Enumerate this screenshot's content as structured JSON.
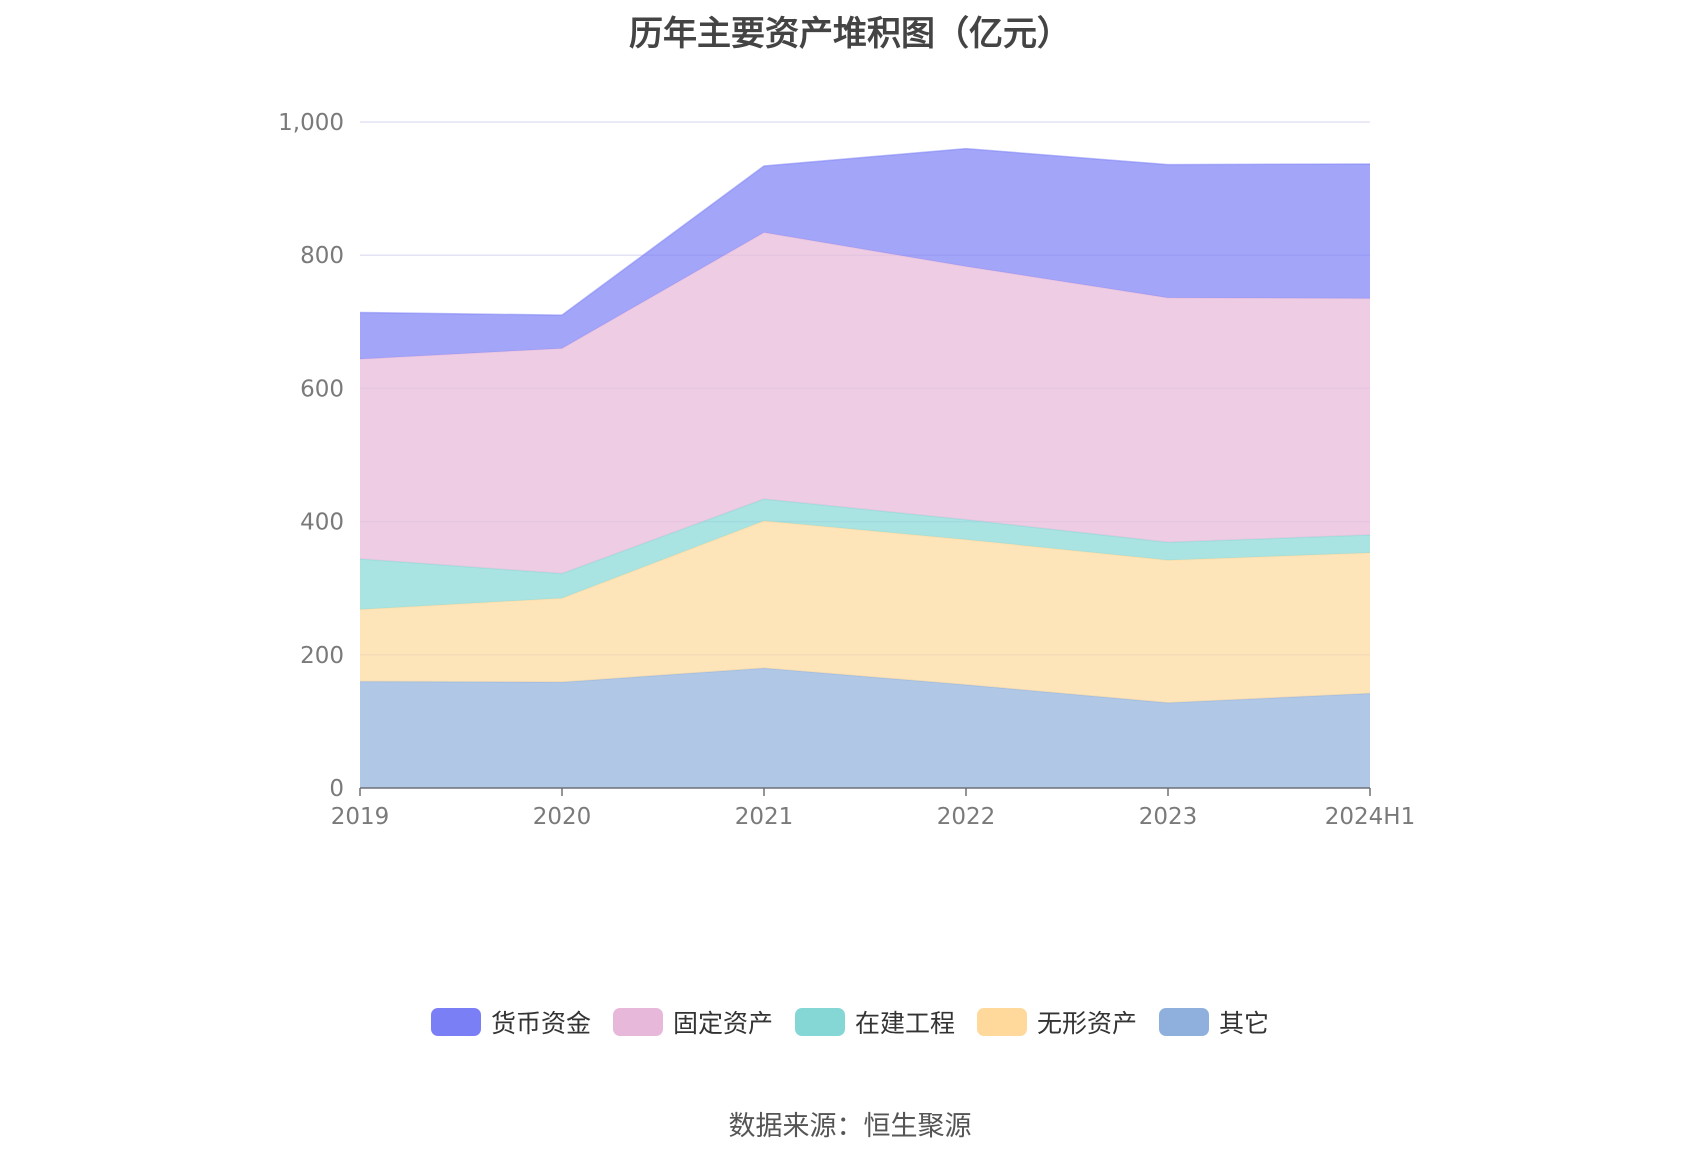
{
  "title": "历年主要资产堆积图（亿元）",
  "source": "数据来源：恒生聚源",
  "chart_data": {
    "type": "area",
    "stacked": true,
    "title": "历年主要资产堆积图（亿元）",
    "xlabel": "",
    "ylabel": "",
    "categories": [
      "2019",
      "2020",
      "2021",
      "2022",
      "2023",
      "2024H1"
    ],
    "ylim": [
      0,
      1000
    ],
    "yticks": [
      0,
      200,
      400,
      600,
      800,
      1000
    ],
    "ytick_labels": [
      "0",
      "200",
      "400",
      "600",
      "800",
      "1,000"
    ],
    "grid": true,
    "legend_position": "bottom",
    "series": [
      {
        "name": "其它",
        "values": [
          160,
          159,
          180,
          155,
          128,
          142
        ],
        "color": "#8fb0dc"
      },
      {
        "name": "无形资产",
        "values": [
          108,
          126,
          221,
          218,
          214,
          211
        ],
        "color": "#fed99b"
      },
      {
        "name": "在建工程",
        "values": [
          76,
          37,
          33,
          30,
          27,
          27
        ],
        "color": "#85d7d6"
      },
      {
        "name": "固定资产",
        "values": [
          300,
          338,
          400,
          380,
          367,
          355
        ],
        "color": "#e7b8d9"
      },
      {
        "name": "货币资金",
        "values": [
          70,
          50,
          100,
          177,
          200,
          202
        ],
        "color": "#7b7ff5"
      }
    ]
  },
  "legend": {
    "items": [
      {
        "label": "货币资金",
        "color": "#7b7ff5"
      },
      {
        "label": "固定资产",
        "color": "#e7b8d9"
      },
      {
        "label": "在建工程",
        "color": "#85d7d6"
      },
      {
        "label": "无形资产",
        "color": "#fed99b"
      },
      {
        "label": "其它",
        "color": "#8fb0dc"
      }
    ]
  }
}
